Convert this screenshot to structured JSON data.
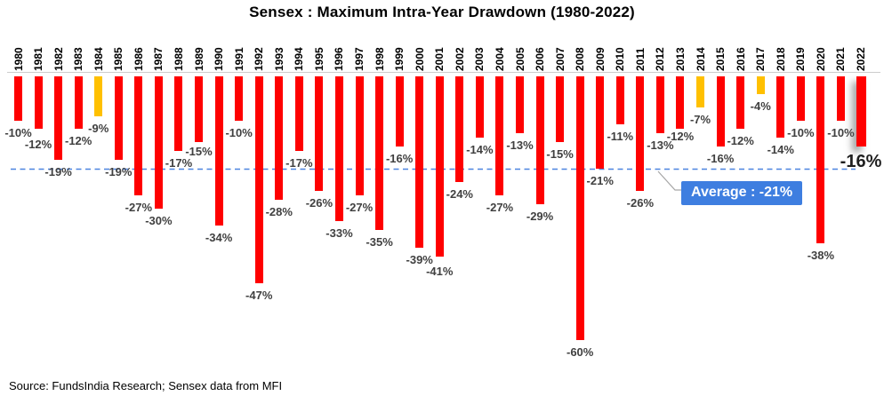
{
  "chart_data": {
    "type": "bar",
    "title": "Sensex : Maximum Intra-Year Drawdown (1980-2022)",
    "source": "Source: FundsIndia Research; Sensex data from MFI",
    "categories": [
      "1980",
      "1981",
      "1982",
      "1983",
      "1984",
      "1985",
      "1986",
      "1987",
      "1988",
      "1989",
      "1990",
      "1991",
      "1992",
      "1993",
      "1994",
      "1995",
      "1996",
      "1997",
      "1998",
      "1999",
      "2000",
      "2001",
      "2002",
      "2003",
      "2004",
      "2005",
      "2006",
      "2007",
      "2008",
      "2009",
      "2010",
      "2011",
      "2012",
      "2013",
      "2014",
      "2015",
      "2016",
      "2017",
      "2018",
      "2019",
      "2020",
      "2021",
      "2022"
    ],
    "values": [
      -10,
      -12,
      -19,
      -12,
      -9,
      -19,
      -27,
      -30,
      -17,
      -15,
      -34,
      -10,
      -47,
      -28,
      -17,
      -26,
      -33,
      -27,
      -35,
      -16,
      -39,
      -41,
      -24,
      -14,
      -27,
      -13,
      -29,
      -15,
      -60,
      -21,
      -11,
      -26,
      -13,
      -12,
      -7,
      -16,
      -12,
      -4,
      -14,
      -10,
      -38,
      -10,
      -16
    ],
    "value_label_suffix": "%",
    "yellow_years": [
      "1984",
      "2014",
      "2017"
    ],
    "emphasized_year": "2022",
    "average": {
      "value": -21,
      "label": "Average : -21%"
    },
    "axis": {
      "ylim": [
        -65,
        0
      ],
      "orientation": "bars-down",
      "gridlines": "off",
      "category_axis_position": "top"
    },
    "legend": "none",
    "colors": {
      "bar": "#FF0000",
      "bar_yellow": "#FFC000",
      "value_label": "#404040",
      "emphasis_label": "#1f1f1f",
      "axis_line": "#cccccc",
      "average_line": "#4C84E0",
      "average_box": "#3E7EE0",
      "leader_line": "#a6a6a6"
    }
  }
}
